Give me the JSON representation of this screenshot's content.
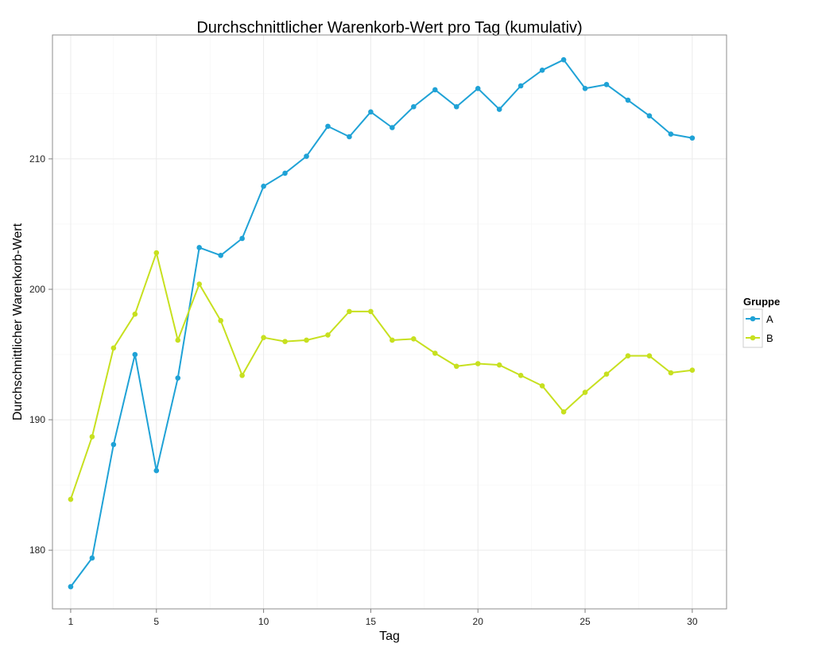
{
  "chart_data": {
    "type": "line",
    "title": "Durchschnittlicher Warenkorb-Wert pro Tag (kumulativ)",
    "xlabel": "Tag",
    "ylabel": "Durchschnittlicher Warenkorb-Wert",
    "x_ticks": [
      1,
      5,
      10,
      15,
      20,
      25,
      30
    ],
    "y_ticks": [
      180,
      190,
      200,
      210
    ],
    "xlim": [
      0.15,
      31.6
    ],
    "ylim": [
      175.5,
      219.5
    ],
    "grid": true,
    "legend": {
      "title": "Gruppe",
      "position": "right"
    },
    "x": [
      1,
      2,
      3,
      4,
      5,
      6,
      7,
      8,
      9,
      10,
      11,
      12,
      13,
      14,
      15,
      16,
      17,
      18,
      19,
      20,
      21,
      22,
      23,
      24,
      25,
      26,
      27,
      28,
      29,
      30
    ],
    "series": [
      {
        "name": "A",
        "color": "#1fa2d6",
        "values": [
          177.2,
          179.4,
          188.1,
          195.0,
          186.1,
          193.2,
          203.2,
          202.6,
          203.9,
          207.9,
          208.9,
          210.2,
          212.5,
          211.7,
          213.6,
          212.4,
          214.0,
          215.3,
          214.0,
          215.4,
          213.8,
          215.6,
          216.8,
          217.6,
          215.4,
          215.7,
          214.5,
          213.3,
          211.9,
          211.6
        ]
      },
      {
        "name": "B",
        "color": "#c7e01f",
        "values": [
          183.9,
          188.7,
          195.5,
          198.1,
          202.8,
          196.1,
          200.4,
          197.6,
          193.4,
          196.3,
          196.0,
          196.1,
          196.5,
          198.3,
          198.3,
          196.1,
          196.2,
          195.1,
          194.1,
          194.3,
          194.2,
          193.4,
          192.6,
          190.6,
          192.1,
          193.5,
          194.9,
          194.9,
          193.6,
          193.8
        ]
      }
    ]
  }
}
